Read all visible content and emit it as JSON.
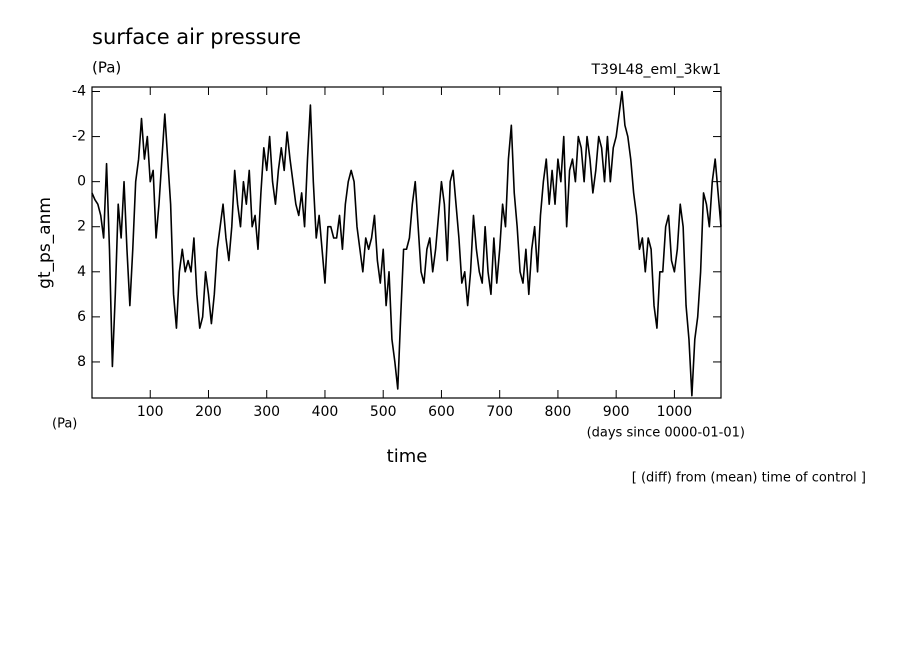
{
  "chart_data": {
    "type": "line",
    "title": "surface air pressure",
    "unit_label": "(Pa)",
    "run_label": "T39L48_eml_3kw1",
    "ylabel": "gt_ps_anm",
    "y_unit_label": "(Pa)",
    "xlabel": "time",
    "x_unit_label": "(days since 0000-01-01)",
    "note": "[ (diff) from (mean) time of control ]",
    "xlim": [
      0,
      1080
    ],
    "ylim": [
      9.6,
      -4.2
    ],
    "xticks": [
      100,
      200,
      300,
      400,
      500,
      600,
      700,
      800,
      900,
      1000
    ],
    "yticks": [
      -4,
      -2,
      0,
      2,
      4,
      6,
      8
    ],
    "series": [
      {
        "color": "#000000",
        "x": [
          0,
          5,
          10,
          15,
          20,
          25,
          30,
          35,
          40,
          45,
          50,
          55,
          60,
          65,
          70,
          75,
          80,
          85,
          90,
          95,
          100,
          105,
          110,
          115,
          120,
          125,
          130,
          135,
          140,
          145,
          150,
          155,
          160,
          165,
          170,
          175,
          180,
          185,
          190,
          195,
          200,
          205,
          210,
          215,
          220,
          225,
          230,
          235,
          240,
          245,
          250,
          255,
          260,
          265,
          270,
          275,
          280,
          285,
          290,
          295,
          300,
          305,
          310,
          315,
          320,
          325,
          330,
          335,
          340,
          345,
          350,
          355,
          360,
          365,
          370,
          375,
          380,
          385,
          390,
          395,
          400,
          405,
          410,
          415,
          420,
          425,
          430,
          435,
          440,
          445,
          450,
          455,
          460,
          465,
          470,
          475,
          480,
          485,
          490,
          495,
          500,
          505,
          510,
          515,
          520,
          525,
          530,
          535,
          540,
          545,
          550,
          555,
          560,
          565,
          570,
          575,
          580,
          585,
          590,
          595,
          600,
          605,
          610,
          615,
          620,
          625,
          630,
          635,
          640,
          645,
          650,
          655,
          660,
          665,
          670,
          675,
          680,
          685,
          690,
          695,
          700,
          705,
          710,
          715,
          720,
          725,
          730,
          735,
          740,
          745,
          750,
          755,
          760,
          765,
          770,
          775,
          780,
          785,
          790,
          795,
          800,
          805,
          810,
          815,
          820,
          825,
          830,
          835,
          840,
          845,
          850,
          855,
          860,
          865,
          870,
          875,
          880,
          885,
          890,
          895,
          900,
          905,
          910,
          915,
          920,
          925,
          930,
          935,
          940,
          945,
          950,
          955,
          960,
          965,
          970,
          975,
          980,
          985,
          990,
          995,
          1000,
          1005,
          1010,
          1015,
          1020,
          1025,
          1030,
          1035,
          1040,
          1045,
          1050,
          1055,
          1060,
          1065,
          1070,
          1075,
          1080
        ],
        "values": [
          0.5,
          0.8,
          1,
          1.5,
          2.5,
          -0.8,
          3,
          8.2,
          5,
          1,
          2.5,
          0,
          3,
          5.5,
          3,
          0,
          -1,
          -2.8,
          -1,
          -2,
          0,
          -0.5,
          2.5,
          1,
          -1,
          -3,
          -1,
          1,
          5,
          6.5,
          4,
          3,
          4,
          3.5,
          4,
          2.5,
          5,
          6.5,
          6,
          4,
          5,
          6.3,
          5,
          3,
          2,
          1,
          2.5,
          3.5,
          2,
          -0.5,
          1,
          2,
          0,
          1,
          -0.5,
          2,
          1.5,
          3,
          0.5,
          -1.5,
          -0.5,
          -2,
          0,
          1,
          -0.5,
          -1.5,
          -0.5,
          -2.2,
          -1,
          0,
          1,
          1.5,
          0.5,
          2,
          -1,
          -3.4,
          0,
          2.5,
          1.5,
          3,
          4.5,
          2,
          2,
          2.5,
          2.5,
          1.5,
          3,
          1,
          0,
          -0.5,
          0,
          2,
          3,
          4,
          2.5,
          3,
          2.5,
          1.5,
          3.5,
          4.5,
          3,
          5.5,
          4,
          7,
          8,
          9.2,
          6,
          3,
          3,
          2.5,
          1,
          0,
          2,
          4,
          4.5,
          3,
          2.5,
          4,
          3,
          1.5,
          0,
          1,
          3.5,
          0,
          -0.5,
          1,
          2.5,
          4.5,
          4,
          5.5,
          4,
          1.5,
          3,
          4,
          4.5,
          2,
          4,
          5,
          2.5,
          4.5,
          3,
          1,
          2,
          -1,
          -2.5,
          0.5,
          2,
          4,
          4.5,
          3,
          5,
          3,
          2,
          4,
          1.5,
          0,
          -1,
          1,
          -0.5,
          1,
          -1,
          0,
          -2,
          2,
          -0.5,
          -1,
          0,
          -2,
          -1.5,
          0,
          -2,
          -1,
          0.5,
          -0.5,
          -2,
          -1.5,
          0,
          -2,
          0,
          -1.5,
          -2,
          -3,
          -4,
          -2.5,
          -2,
          -1,
          0.5,
          1.5,
          3,
          2.5,
          4,
          2.5,
          3,
          5.5,
          6.5,
          4,
          4,
          2,
          1.5,
          3.5,
          4,
          3,
          1,
          2,
          5.5,
          7,
          9.5,
          7,
          6,
          4,
          0.5,
          1,
          2,
          0,
          -1,
          0.5,
          2
        ]
      }
    ]
  }
}
